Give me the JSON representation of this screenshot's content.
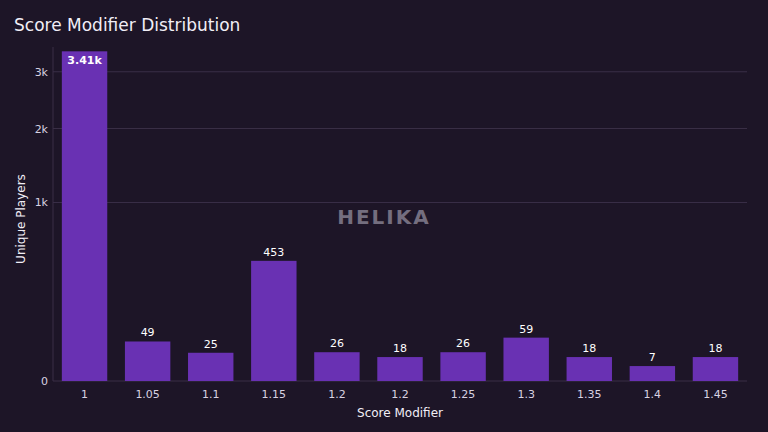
{
  "chart_data": {
    "type": "bar",
    "title": "Score Modifier Distribution",
    "x_label": "Score Modifier",
    "y_label": "Unique Players",
    "annotations": [
      "HELIKA"
    ],
    "categories": [
      "1",
      "1.05",
      "1.1",
      "1.15",
      "1.2",
      "1.2",
      "1.25",
      "1.3",
      "1.35",
      "1.4",
      "1.45"
    ],
    "values": [
      3410,
      49,
      25,
      453,
      26,
      18,
      26,
      59,
      18,
      7,
      18
    ],
    "value_labels": [
      "3.41k",
      "49",
      "25",
      "453",
      "26",
      "18",
      "26",
      "59",
      "18",
      "7",
      "18"
    ],
    "color": "#6931b3",
    "ylim": [
      0,
      3500
    ],
    "yticks": [
      0,
      {
        "value": 1000,
        "label": "1k"
      },
      {
        "value": 2000,
        "label": "2k"
      },
      {
        "value": 3000,
        "label": "3k"
      }
    ],
    "grid": true,
    "data_labels": true
  }
}
